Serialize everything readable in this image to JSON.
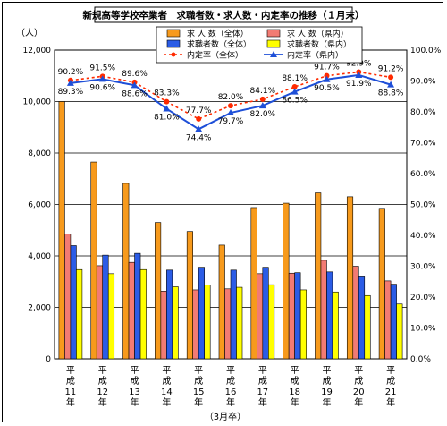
{
  "chart_data": {
    "type": "bar",
    "title": "新規高等学校卒業者　求職者数・求人数・内定率の推移（１月末）",
    "y_left_label": "（人）",
    "x_note": "（3月卒）",
    "categories": [
      [
        "平",
        "成",
        "11",
        "年"
      ],
      [
        "平",
        "成",
        "12",
        "年"
      ],
      [
        "平",
        "成",
        "13",
        "年"
      ],
      [
        "平",
        "成",
        "14",
        "年"
      ],
      [
        "平",
        "成",
        "15",
        "年"
      ],
      [
        "平",
        "成",
        "16",
        "年"
      ],
      [
        "平",
        "成",
        "17",
        "年"
      ],
      [
        "平",
        "成",
        "18",
        "年"
      ],
      [
        "平",
        "成",
        "19",
        "年"
      ],
      [
        "平",
        "成",
        "20",
        "年"
      ],
      [
        "平",
        "成",
        "21",
        "年"
      ]
    ],
    "y_left": {
      "min": 0,
      "max": 12000,
      "step": 2000,
      "ticks": [
        "0",
        "2,000",
        "4,000",
        "6,000",
        "8,000",
        "10,000",
        "12,000"
      ]
    },
    "y_right": {
      "min": 0,
      "max": 100,
      "step": 10,
      "ticks": [
        "0.0%",
        "10.0%",
        "20.0%",
        "30.0%",
        "40.0%",
        "50.0%",
        "60.0%",
        "70.0%",
        "80.0%",
        "90.0%",
        "100.0%"
      ]
    },
    "bar_series": [
      {
        "name": "求 人 数（全体）",
        "color": "#f79a1c",
        "values": [
          10000,
          7650,
          6820,
          5300,
          4950,
          4420,
          5880,
          6050,
          6450,
          6300,
          5850
        ]
      },
      {
        "name": "求 人 数（県内）",
        "color": "#f27b73",
        "values": [
          4850,
          3620,
          3750,
          2630,
          2680,
          2720,
          3310,
          3330,
          3830,
          3600,
          3030
        ]
      },
      {
        "name": "求職者数（全体）",
        "color": "#2b5ce6",
        "values": [
          4400,
          4030,
          4100,
          3450,
          3560,
          3450,
          3560,
          3350,
          3380,
          3220,
          2900
        ]
      },
      {
        "name": "求職者数（県内）",
        "color": "#ffff00",
        "values": [
          3470,
          3310,
          3470,
          2800,
          2870,
          2780,
          2880,
          2680,
          2600,
          2460,
          2130
        ]
      }
    ],
    "line_series": [
      {
        "name": "内定率（全体）",
        "color": "#ff2a00",
        "values": [
          90.2,
          91.5,
          89.6,
          83.3,
          77.7,
          82.0,
          84.1,
          88.1,
          91.7,
          92.9,
          91.2
        ],
        "labels": [
          "90.2%",
          "91.5%",
          "89.6%",
          "83.3%",
          "77.7%",
          "82.0%",
          "84.1%",
          "88.1%",
          "91.7%",
          "92.9%",
          "91.2%"
        ]
      },
      {
        "name": "内定率（県内）",
        "color": "#1e4fd8",
        "values": [
          89.3,
          90.6,
          88.6,
          81.0,
          74.4,
          79.7,
          82.0,
          86.5,
          90.5,
          91.9,
          88.8
        ],
        "labels": [
          "89.3%",
          "90.6%",
          "88.6%",
          "81.0%",
          "74.4%",
          "79.7%",
          "82.0%",
          "86.5%",
          "90.5%",
          "91.9%",
          "88.8%"
        ]
      }
    ],
    "grid": true,
    "legend_position": "top-center"
  }
}
